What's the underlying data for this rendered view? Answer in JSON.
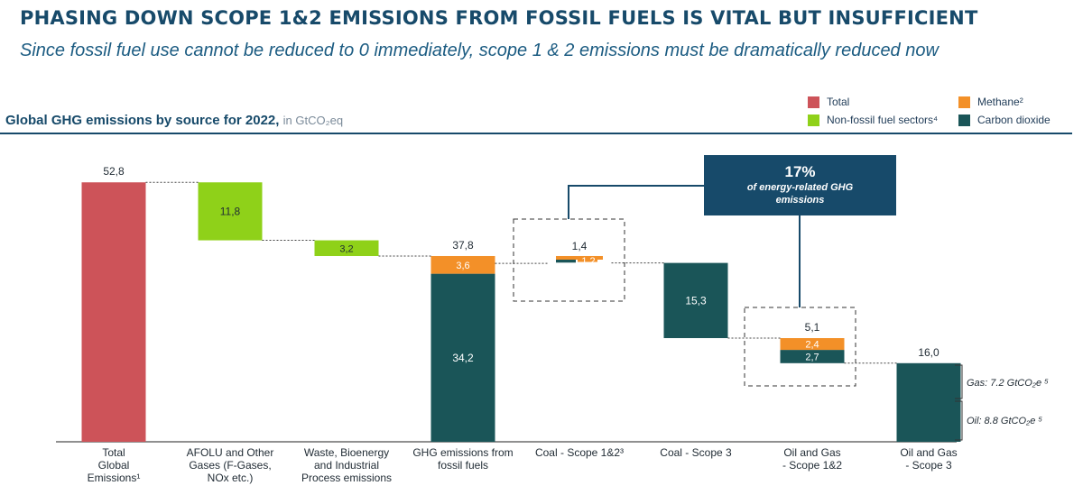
{
  "header": {
    "title": "PHASING DOWN SCOPE 1&2 EMISSIONS FROM FOSSIL FUELS IS VITAL BUT INSUFFICIENT",
    "subtitle": "Since fossil fuel use cannot be reduced to 0 immediately, scope 1 & 2 emissions must be dramatically reduced now"
  },
  "chart_heading": {
    "label": "Global GHG emissions by source for 2022,",
    "unit": "in GtCO₂eq"
  },
  "legend": {
    "total": "Total",
    "methane": "Methane²",
    "nonfossil": "Non-fossil fuel sectors⁴",
    "co2": "Carbon dioxide"
  },
  "colors": {
    "total": "#cd5359",
    "methane": "#f39028",
    "nonfossil": "#8fd119",
    "co2": "#1a5558",
    "navy": "#174a6a"
  },
  "callout": {
    "pct": "17%",
    "line1": "of energy-related GHG",
    "line2": "emissions"
  },
  "gas_note": {
    "gas": "Gas: 7.2 GtCO₂e ⁵",
    "oil": "Oil: 8.8 GtCO₂e ⁵"
  },
  "chart_data": {
    "type": "bar",
    "subtype": "waterfall",
    "title": "Global GHG emissions by source for 2022",
    "unit": "GtCO2eq",
    "ylim": [
      0,
      60
    ],
    "categories": [
      "Total Global Emissions¹",
      "AFOLU and Other Gases (F-Gases, NOx etc.)",
      "Waste, Bioenergy and Industrial Process emissions",
      "GHG emissions from fossil fuels",
      "Coal - Scope 1&2³",
      "Coal - Scope 3",
      "Oil and Gas - Scope 1&2",
      "Oil and Gas - Scope 3"
    ],
    "category_lines": [
      [
        "Total",
        "Global",
        "Emissions¹"
      ],
      [
        "AFOLU and Other",
        "Gases (F-Gases,",
        "NOx etc.)"
      ],
      [
        "Waste, Bioenergy",
        "and Industrial",
        "Process emissions"
      ],
      [
        "GHG emissions from",
        "fossil fuels"
      ],
      [
        "Coal - Scope 1&2³"
      ],
      [
        "Coal - Scope 3"
      ],
      [
        "Oil and Gas",
        "- Scope 1&2"
      ],
      [
        "Oil and Gas",
        "- Scope 3"
      ]
    ],
    "bars": [
      {
        "category": 0,
        "base": 0,
        "segments": [
          {
            "series": "total",
            "value": 52.8
          }
        ],
        "total_label": "52,8"
      },
      {
        "category": 1,
        "base": 41.0,
        "segments": [
          {
            "series": "nonfossil",
            "value": 11.8,
            "label": "11,8"
          }
        ]
      },
      {
        "category": 2,
        "base": 37.8,
        "segments": [
          {
            "series": "nonfossil",
            "value": 3.2,
            "label": "3,2"
          }
        ]
      },
      {
        "category": 3,
        "base": 0,
        "segments": [
          {
            "series": "co2",
            "value": 34.2,
            "label": "34,2"
          },
          {
            "series": "methane",
            "value": 3.6,
            "label": "3,6"
          }
        ],
        "total_label": "37,8"
      },
      {
        "category": 4,
        "base": 36.4,
        "segments": [
          {
            "series": "co2",
            "value": 0.2,
            "label": "0,2"
          },
          {
            "series": "methane",
            "value": 1.2,
            "label": "1,2"
          }
        ],
        "total_label": "1,4",
        "side_by_side": true
      },
      {
        "category": 5,
        "base": 21.1,
        "segments": [
          {
            "series": "co2",
            "value": 15.3,
            "label": "15,3"
          }
        ]
      },
      {
        "category": 6,
        "base": 16.0,
        "segments": [
          {
            "series": "co2",
            "value": 2.7,
            "label": "2,7"
          },
          {
            "series": "methane",
            "value": 2.4,
            "label": "2,4"
          }
        ],
        "total_label": "5,1"
      },
      {
        "category": 7,
        "base": 0,
        "segments": [
          {
            "series": "co2",
            "value": 16.0
          }
        ],
        "total_label": "16,0"
      }
    ],
    "series": [
      {
        "name": "Total",
        "key": "total"
      },
      {
        "name": "Methane²",
        "key": "methane"
      },
      {
        "name": "Non-fossil fuel sectors⁴",
        "key": "nonfossil"
      },
      {
        "name": "Carbon dioxide",
        "key": "co2"
      }
    ],
    "annotation": {
      "value": "17%",
      "text": "of energy-related GHG emissions",
      "applies_to": [
        4,
        6
      ]
    },
    "breakdown_scope3_oil_gas": [
      {
        "name": "Gas",
        "value": 7.2
      },
      {
        "name": "Oil",
        "value": 8.8
      }
    ],
    "legend_position": "top-right",
    "grid": false
  }
}
